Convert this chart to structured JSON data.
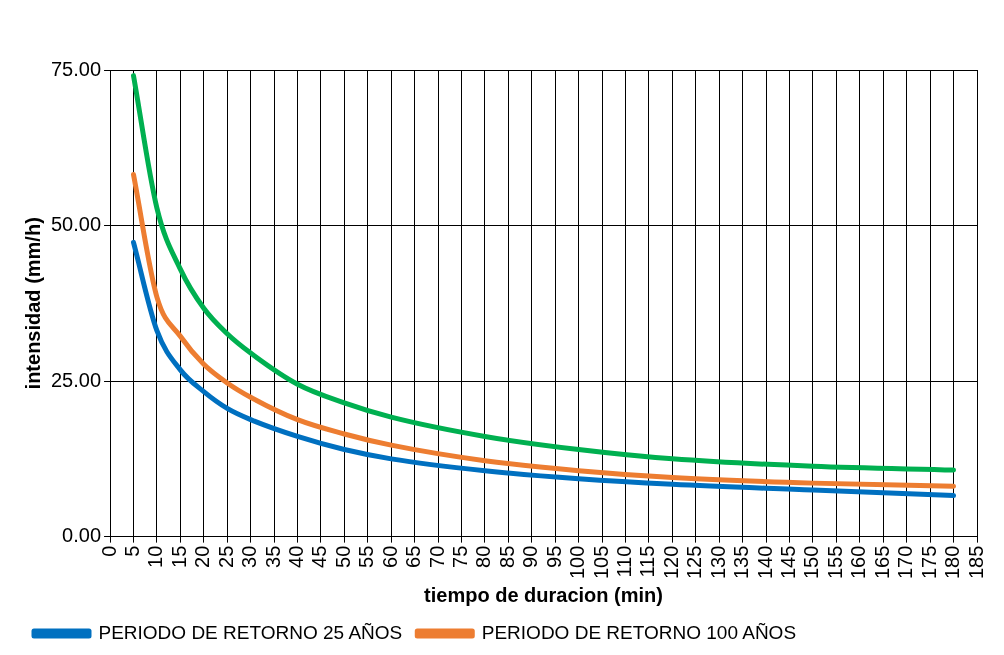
{
  "chart_data": {
    "type": "line",
    "xlabel": "tiempo de duracion (min)",
    "ylabel": "intensidad (mm/h)",
    "x": [
      5,
      10,
      15,
      20,
      25,
      30,
      40,
      50,
      60,
      80,
      100,
      120,
      150,
      180
    ],
    "series": [
      {
        "name": "PERIODO DE RETORNO 25 AÑOS",
        "color": "#0070c0",
        "values": [
          47.3,
          33.1,
          26.8,
          23.3,
          20.6,
          18.8,
          16.1,
          14.0,
          12.5,
          10.6,
          9.3,
          8.4,
          7.5,
          6.6
        ]
      },
      {
        "name": "PERIODO DE RETORNO 100 AÑOS",
        "color": "#ed7d31",
        "values": [
          58.2,
          38.5,
          32.2,
          27.7,
          24.7,
          22.4,
          18.8,
          16.5,
          14.7,
          12.2,
          10.6,
          9.5,
          8.6,
          8.1
        ]
      },
      {
        "color": "#00b050",
        "values": [
          74.1,
          52.8,
          43.0,
          36.7,
          32.6,
          29.5,
          24.5,
          21.5,
          19.2,
          16.1,
          14.0,
          12.5,
          11.3,
          10.7
        ]
      }
    ],
    "xlim": [
      0,
      185
    ],
    "xticks": [
      0,
      5,
      10,
      15,
      20,
      25,
      30,
      35,
      40,
      45,
      50,
      55,
      60,
      65,
      70,
      75,
      80,
      85,
      90,
      95,
      100,
      105,
      110,
      115,
      120,
      125,
      130,
      135,
      140,
      145,
      150,
      155,
      160,
      165,
      170,
      175,
      180,
      185
    ],
    "ylim": [
      0,
      75
    ],
    "yticks": [
      {
        "value": 0,
        "label": "0.00"
      },
      {
        "value": 25,
        "label": "25.00"
      },
      {
        "value": 50,
        "label": "50.00"
      },
      {
        "value": 75,
        "label": "75.00"
      }
    ],
    "grid": true,
    "legend": "bottom",
    "marker": "none",
    "line_style": "solid"
  }
}
